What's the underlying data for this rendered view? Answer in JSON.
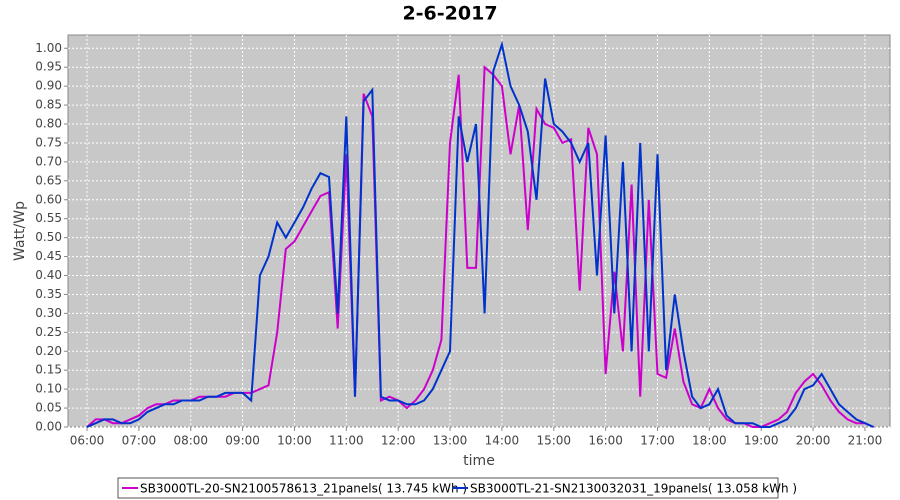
{
  "chart_data": {
    "type": "line",
    "title": "2-6-2017",
    "x_label": "time",
    "y_label": "Watt/Wp",
    "x": [
      "06:00",
      "06:10",
      "06:20",
      "06:30",
      "06:40",
      "06:50",
      "07:00",
      "07:10",
      "07:20",
      "07:30",
      "07:40",
      "07:50",
      "08:00",
      "08:10",
      "08:20",
      "08:30",
      "08:40",
      "08:50",
      "09:00",
      "09:10",
      "09:20",
      "09:30",
      "09:40",
      "09:50",
      "10:00",
      "10:10",
      "10:20",
      "10:30",
      "10:40",
      "10:50",
      "11:00",
      "11:10",
      "11:20",
      "11:30",
      "11:40",
      "11:50",
      "12:00",
      "12:10",
      "12:20",
      "12:30",
      "12:40",
      "12:50",
      "13:00",
      "13:10",
      "13:20",
      "13:30",
      "13:40",
      "13:50",
      "14:00",
      "14:10",
      "14:20",
      "14:30",
      "14:40",
      "14:50",
      "15:00",
      "15:10",
      "15:20",
      "15:30",
      "15:40",
      "15:50",
      "16:00",
      "16:10",
      "16:20",
      "16:30",
      "16:40",
      "16:50",
      "17:00",
      "17:10",
      "17:20",
      "17:30",
      "17:40",
      "17:50",
      "18:00",
      "18:10",
      "18:20",
      "18:30",
      "18:40",
      "18:50",
      "19:00",
      "19:10",
      "19:20",
      "19:30",
      "19:40",
      "19:50",
      "20:00",
      "20:10",
      "20:20",
      "20:30",
      "20:40",
      "20:50",
      "21:00",
      "21:10"
    ],
    "series": [
      {
        "name": "SB3000TL-20-SN2100578613_21panels( 13.745 kWh )",
        "color": "#cc00cc",
        "values": [
          0.0,
          0.02,
          0.02,
          0.01,
          0.01,
          0.02,
          0.03,
          0.05,
          0.06,
          0.06,
          0.07,
          0.07,
          0.07,
          0.08,
          0.08,
          0.08,
          0.08,
          0.09,
          0.09,
          0.09,
          0.1,
          0.11,
          0.25,
          0.47,
          0.49,
          0.53,
          0.57,
          0.61,
          0.62,
          0.26,
          0.72,
          0.08,
          0.88,
          0.82,
          0.07,
          0.08,
          0.07,
          0.05,
          0.07,
          0.1,
          0.15,
          0.23,
          0.75,
          0.93,
          0.42,
          0.42,
          0.95,
          0.93,
          0.9,
          0.72,
          0.85,
          0.52,
          0.84,
          0.8,
          0.79,
          0.75,
          0.76,
          0.36,
          0.79,
          0.72,
          0.14,
          0.41,
          0.2,
          0.64,
          0.08,
          0.6,
          0.14,
          0.13,
          0.26,
          0.12,
          0.06,
          0.05,
          0.1,
          0.05,
          0.02,
          0.01,
          0.01,
          0.0,
          0.0,
          0.01,
          0.02,
          0.04,
          0.09,
          0.12,
          0.14,
          0.11,
          0.07,
          0.04,
          0.02,
          0.01,
          0.01,
          0.0
        ]
      },
      {
        "name": "SB3000TL-21-SN2130032031_19panels( 13.058 kWh )",
        "color": "#0033cc",
        "values": [
          0.0,
          0.01,
          0.02,
          0.02,
          0.01,
          0.01,
          0.02,
          0.04,
          0.05,
          0.06,
          0.06,
          0.07,
          0.07,
          0.07,
          0.08,
          0.08,
          0.09,
          0.09,
          0.09,
          0.07,
          0.4,
          0.45,
          0.54,
          0.5,
          0.54,
          0.58,
          0.63,
          0.67,
          0.66,
          0.3,
          0.82,
          0.08,
          0.86,
          0.89,
          0.08,
          0.07,
          0.07,
          0.06,
          0.06,
          0.07,
          0.1,
          0.15,
          0.2,
          0.82,
          0.7,
          0.8,
          0.3,
          0.94,
          1.01,
          0.9,
          0.85,
          0.78,
          0.6,
          0.92,
          0.8,
          0.78,
          0.75,
          0.7,
          0.75,
          0.4,
          0.77,
          0.3,
          0.7,
          0.2,
          0.75,
          0.2,
          0.72,
          0.15,
          0.35,
          0.2,
          0.08,
          0.05,
          0.06,
          0.1,
          0.03,
          0.01,
          0.01,
          0.01,
          0.0,
          0.0,
          0.01,
          0.02,
          0.05,
          0.1,
          0.11,
          0.14,
          0.1,
          0.06,
          0.04,
          0.02,
          0.01,
          0.0
        ]
      }
    ],
    "xlim": [
      "05:38",
      "21:29"
    ],
    "xticks": [
      "06:00",
      "07:00",
      "08:00",
      "09:00",
      "10:00",
      "11:00",
      "12:00",
      "13:00",
      "14:00",
      "15:00",
      "16:00",
      "17:00",
      "18:00",
      "19:00",
      "20:00",
      "21:00"
    ],
    "ylim": [
      0,
      1.035
    ],
    "yticks": [
      {
        "value": 0,
        "label": "0.00"
      },
      {
        "value": 0.05,
        "label": "0.05"
      },
      {
        "value": 0.1,
        "label": "0.10"
      },
      {
        "value": 0.15,
        "label": "0.15"
      },
      {
        "value": 0.2,
        "label": "0.20"
      },
      {
        "value": 0.25,
        "label": "0.25"
      },
      {
        "value": 0.3,
        "label": "0.30"
      },
      {
        "value": 0.35,
        "label": "0.35"
      },
      {
        "value": 0.4,
        "label": "0.40"
      },
      {
        "value": 0.45,
        "label": "0.45"
      },
      {
        "value": 0.5,
        "label": "0.50"
      },
      {
        "value": 0.55,
        "label": "0.55"
      },
      {
        "value": 0.6,
        "label": "0.60"
      },
      {
        "value": 0.65,
        "label": "0.65"
      },
      {
        "value": 0.7,
        "label": "0.70"
      },
      {
        "value": 0.75,
        "label": "0.75"
      },
      {
        "value": 0.8,
        "label": "0.80"
      },
      {
        "value": 0.85,
        "label": "0.85"
      },
      {
        "value": 0.9,
        "label": "0.90"
      },
      {
        "value": 0.95,
        "label": "0.95"
      },
      {
        "value": 1,
        "label": "1.00"
      }
    ],
    "grid": true
  }
}
